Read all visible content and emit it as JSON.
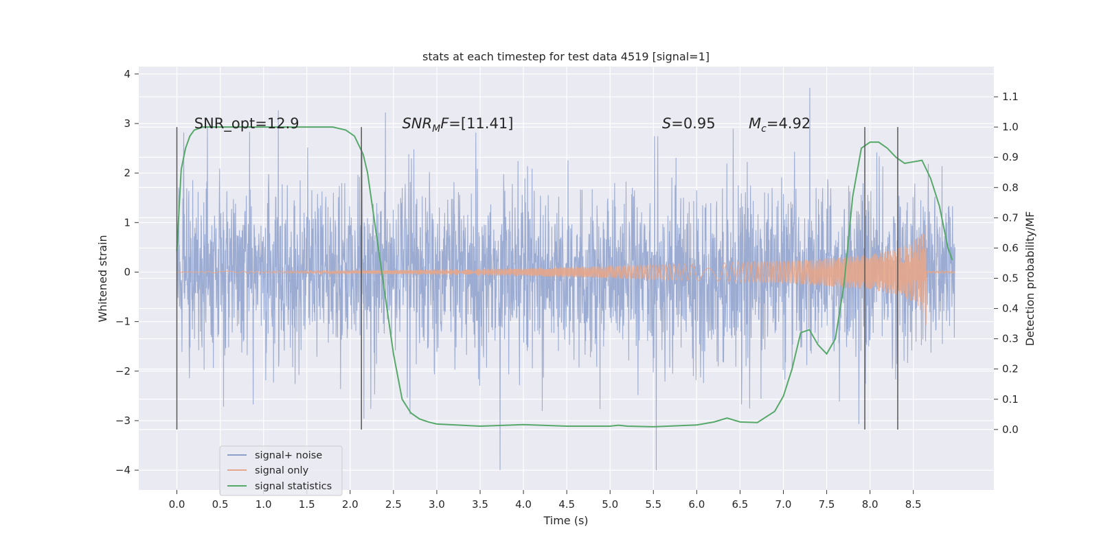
{
  "chart_data": {
    "type": "line",
    "title": "stats at each timestep for test data 4519 [signal=1]",
    "xlabel": "Time (s)",
    "ylabel": "Whitened strain",
    "y2label": "Detection probability/MF",
    "xlim": [
      -0.44,
      9.43
    ],
    "ylim": [
      -4.4,
      4.15
    ],
    "y2lim": [
      -0.2,
      1.2
    ],
    "x_ticks": [
      "0.0",
      "0.5",
      "1.0",
      "1.5",
      "2.0",
      "2.5",
      "3.0",
      "3.5",
      "4.0",
      "4.5",
      "5.0",
      "5.5",
      "6.0",
      "6.5",
      "7.0",
      "7.5",
      "8.0",
      "8.5"
    ],
    "y_ticks": [
      "4",
      "3",
      "2",
      "1",
      "0",
      "−1",
      "−2",
      "−3",
      "−4"
    ],
    "y2_ticks": [
      "1.1",
      "1.0",
      "0.9",
      "0.8",
      "0.7",
      "0.6",
      "0.5",
      "0.4",
      "0.3",
      "0.2",
      "0.1",
      "0.0"
    ],
    "grid": true,
    "legend": {
      "placement": "lower-left",
      "entries": [
        "signal+ noise",
        "signal only",
        "signal statistics"
      ]
    },
    "colors": {
      "signal_noise": "#8da0cb",
      "signal_only": "#e5a68b",
      "statistics": "#55a868",
      "vline": "#555555",
      "background": "#eaeaf2"
    },
    "annotations": [
      {
        "x": 0.2,
        "y": 3.0,
        "text": "SNR_opt=12.9"
      },
      {
        "x": 2.6,
        "y": 3.0,
        "base": "SNR",
        "sub": "M",
        "rest": "F=[11.41]"
      },
      {
        "x": 5.6,
        "y": 3.0,
        "base": "S",
        "sub": "",
        "rest": "=0.95"
      },
      {
        "x": 6.6,
        "y": 3.0,
        "base": "M",
        "sub": "c",
        "rest": "=4.92"
      }
    ],
    "vertical_lines_x": [
      0.0,
      2.13,
      7.94,
      8.32
    ],
    "noise": {
      "t_start": 0.0,
      "t_end": 8.98,
      "upper_envelope_typ": 2.3,
      "lower_envelope_typ": -2.2,
      "min": -4.0,
      "max": 3.8
    },
    "signal_only": {
      "t_start": 0.0,
      "t_merge": 8.65,
      "t_end": 8.98,
      "amplitude_points": [
        [
          0.0,
          0.01
        ],
        [
          2.0,
          0.03
        ],
        [
          4.0,
          0.08
        ],
        [
          6.0,
          0.17
        ],
        [
          7.0,
          0.23
        ],
        [
          7.5,
          0.28
        ],
        [
          8.0,
          0.36
        ],
        [
          8.3,
          0.46
        ],
        [
          8.5,
          0.6
        ],
        [
          8.62,
          0.85
        ],
        [
          8.65,
          1.1
        ]
      ],
      "post_merge_amp": 0.02
    },
    "series": [
      {
        "name": "signal statistics",
        "axis": "right",
        "x": [
          0.0,
          0.05,
          0.1,
          0.15,
          0.2,
          0.3,
          0.5,
          1.0,
          1.5,
          1.8,
          1.95,
          2.05,
          2.15,
          2.2,
          2.3,
          2.4,
          2.5,
          2.6,
          2.7,
          2.8,
          2.9,
          3.0,
          3.5,
          4.0,
          4.5,
          5.0,
          5.1,
          5.2,
          5.5,
          6.0,
          6.2,
          6.35,
          6.5,
          6.7,
          6.9,
          7.0,
          7.1,
          7.2,
          7.3,
          7.4,
          7.5,
          7.6,
          7.7,
          7.8,
          7.9,
          8.0,
          8.1,
          8.2,
          8.3,
          8.4,
          8.5,
          8.6,
          8.7,
          8.8,
          8.9,
          8.95
        ],
        "values": [
          0.59,
          0.86,
          0.93,
          0.97,
          0.99,
          1.0,
          1.0,
          1.0,
          1.0,
          1.0,
          0.99,
          0.97,
          0.91,
          0.85,
          0.65,
          0.45,
          0.25,
          0.1,
          0.055,
          0.035,
          0.025,
          0.018,
          0.011,
          0.016,
          0.011,
          0.011,
          0.014,
          0.011,
          0.009,
          0.015,
          0.025,
          0.038,
          0.025,
          0.023,
          0.06,
          0.11,
          0.2,
          0.32,
          0.33,
          0.28,
          0.25,
          0.3,
          0.48,
          0.77,
          0.93,
          0.95,
          0.95,
          0.93,
          0.9,
          0.88,
          0.885,
          0.89,
          0.83,
          0.74,
          0.6,
          0.56
        ]
      }
    ]
  }
}
